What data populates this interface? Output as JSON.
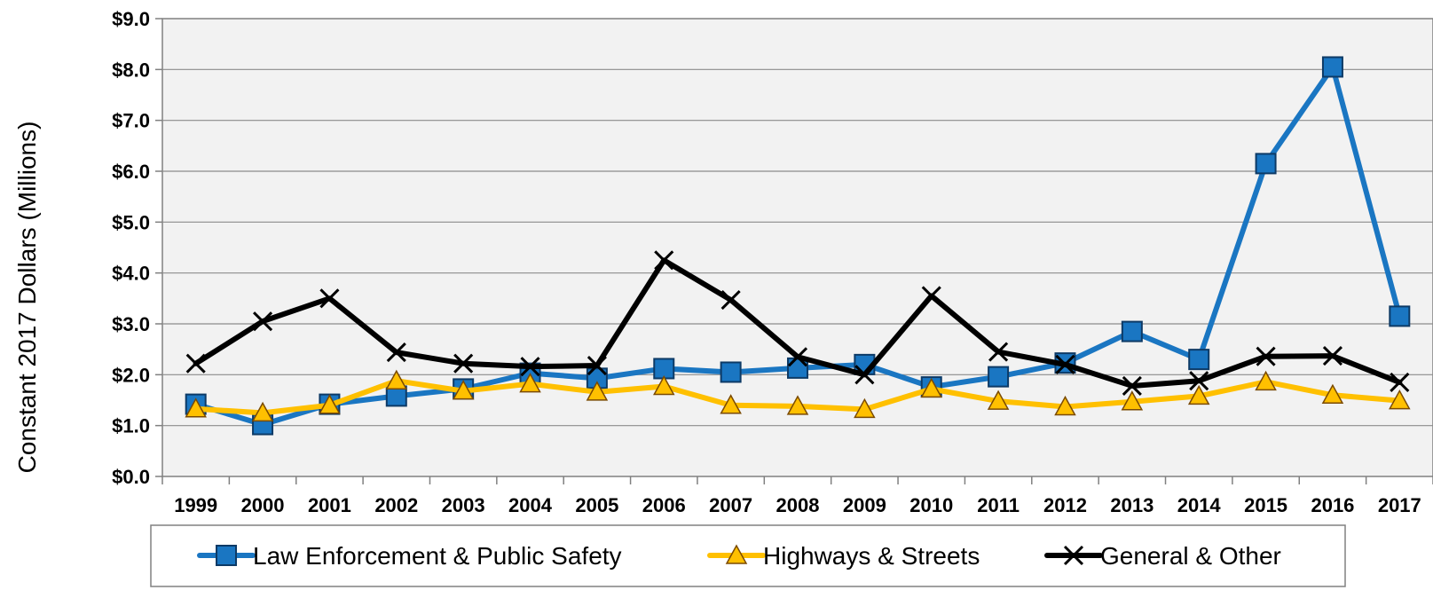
{
  "chart_data": {
    "type": "line",
    "ylabel": "Constant 2017 Dollars (Millions)",
    "xlabel": "",
    "categories": [
      "1999",
      "2000",
      "2001",
      "2002",
      "2003",
      "2004",
      "2005",
      "2006",
      "2007",
      "2008",
      "2009",
      "2010",
      "2011",
      "2012",
      "2013",
      "2014",
      "2015",
      "2016",
      "2017"
    ],
    "ylim": [
      0,
      9
    ],
    "yticks": [
      "$0.0",
      "$1.0",
      "$2.0",
      "$3.0",
      "$4.0",
      "$5.0",
      "$6.0",
      "$7.0",
      "$8.0",
      "$9.0"
    ],
    "grid": true,
    "legend_position": "bottom",
    "series": [
      {
        "name": "Law Enforcement & Public Safety",
        "color": "#1a76c2",
        "marker": "square",
        "values": [
          1.42,
          1.02,
          1.42,
          1.58,
          1.72,
          2.03,
          1.93,
          2.12,
          2.05,
          2.13,
          2.2,
          1.76,
          1.96,
          2.23,
          2.85,
          2.3,
          6.15,
          8.05,
          3.15
        ]
      },
      {
        "name": "Highways & Streets",
        "color": "#ffc000",
        "marker": "triangle",
        "values": [
          1.33,
          1.25,
          1.4,
          1.88,
          1.68,
          1.82,
          1.66,
          1.77,
          1.4,
          1.38,
          1.32,
          1.72,
          1.48,
          1.37,
          1.47,
          1.58,
          1.86,
          1.6,
          1.49
        ]
      },
      {
        "name": "General & Other",
        "color": "#000000",
        "marker": "x",
        "values": [
          2.22,
          3.05,
          3.5,
          2.44,
          2.22,
          2.16,
          2.18,
          4.25,
          3.47,
          2.35,
          2.0,
          3.55,
          2.45,
          2.2,
          1.78,
          1.88,
          2.36,
          2.37,
          1.85
        ]
      }
    ]
  }
}
